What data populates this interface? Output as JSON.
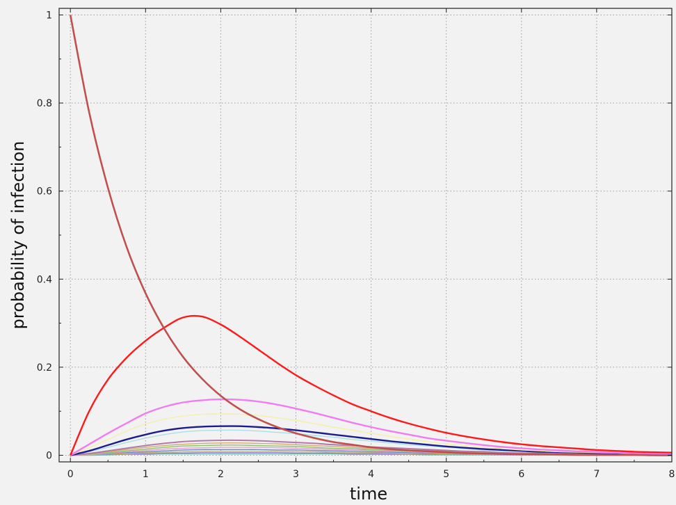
{
  "chart_data": {
    "type": "line",
    "title": "",
    "xlabel": "time",
    "ylabel": "probability of infection",
    "xlim": [
      -0.15,
      8.0
    ],
    "ylim": [
      -0.015,
      1.015
    ],
    "xticks": [
      "0",
      "1",
      "2",
      "3",
      "4",
      "5",
      "6",
      "7",
      "8"
    ],
    "yticks": [
      "0",
      "0.2",
      "0.4",
      "0.6",
      "0.8",
      "1"
    ],
    "grid": "dotted",
    "legend": "none",
    "x": [
      0,
      0.25,
      0.5,
      0.75,
      1,
      1.25,
      1.5,
      1.75,
      2,
      2.25,
      2.5,
      2.75,
      3,
      3.25,
      3.5,
      3.75,
      4,
      4.25,
      4.5,
      4.75,
      5,
      5.25,
      5.5,
      5.75,
      6,
      6.25,
      6.5,
      6.75,
      7,
      7.25,
      7.5,
      7.75,
      8
    ],
    "series": [
      {
        "color": "#c0504d",
        "width": 2.6,
        "values": [
          1.0,
          0.779,
          0.607,
          0.472,
          0.368,
          0.287,
          0.223,
          0.174,
          0.135,
          0.105,
          0.082,
          0.064,
          0.05,
          0.039,
          0.03,
          0.024,
          0.018,
          0.014,
          0.011,
          0.009,
          0.007,
          0.005,
          0.004,
          0.003,
          0.002,
          0.002,
          0.002,
          0.001,
          0.001,
          0.001,
          0.001,
          0.0,
          0.0
        ]
      },
      {
        "color": "#ff1a1a",
        "width": 2.4,
        "values": [
          0.0,
          0.1,
          0.172,
          0.222,
          0.26,
          0.29,
          0.313,
          0.315,
          0.297,
          0.27,
          0.24,
          0.21,
          0.182,
          0.158,
          0.136,
          0.116,
          0.1,
          0.085,
          0.072,
          0.061,
          0.051,
          0.043,
          0.036,
          0.03,
          0.025,
          0.021,
          0.018,
          0.015,
          0.012,
          0.01,
          0.008,
          0.007,
          0.006
        ]
      },
      {
        "color": "#f07cf0",
        "width": 2.4,
        "values": [
          0.0,
          0.025,
          0.05,
          0.073,
          0.095,
          0.11,
          0.12,
          0.125,
          0.127,
          0.126,
          0.122,
          0.115,
          0.106,
          0.096,
          0.085,
          0.074,
          0.064,
          0.055,
          0.047,
          0.039,
          0.033,
          0.028,
          0.023,
          0.019,
          0.016,
          0.013,
          0.011,
          0.009,
          0.008,
          0.006,
          0.005,
          0.004,
          0.004
        ]
      },
      {
        "color": "#f5f0a8",
        "width": 1.4,
        "values": [
          0.0,
          0.017,
          0.036,
          0.055,
          0.071,
          0.082,
          0.089,
          0.093,
          0.094,
          0.093,
          0.09,
          0.085,
          0.079,
          0.072,
          0.064,
          0.057,
          0.05,
          0.043,
          0.037,
          0.031,
          0.026,
          0.022,
          0.018,
          0.015,
          0.012,
          0.01,
          0.008,
          0.007,
          0.006,
          0.005,
          0.004,
          0.003,
          0.003
        ]
      },
      {
        "color": "#1c1c8c",
        "width": 2.4,
        "values": [
          0.0,
          0.01,
          0.023,
          0.036,
          0.047,
          0.056,
          0.062,
          0.065,
          0.066,
          0.066,
          0.064,
          0.061,
          0.057,
          0.052,
          0.047,
          0.042,
          0.037,
          0.032,
          0.028,
          0.024,
          0.02,
          0.017,
          0.014,
          0.012,
          0.01,
          0.008,
          0.007,
          0.006,
          0.005,
          0.004,
          0.003,
          0.003,
          0.002
        ]
      },
      {
        "color": "#a8e0e8",
        "width": 1.4,
        "values": [
          0.0,
          0.008,
          0.018,
          0.029,
          0.039,
          0.047,
          0.053,
          0.056,
          0.057,
          0.057,
          0.055,
          0.052,
          0.049,
          0.045,
          0.041,
          0.036,
          0.032,
          0.028,
          0.024,
          0.021,
          0.018,
          0.015,
          0.012,
          0.01,
          0.009,
          0.007,
          0.006,
          0.005,
          0.004,
          0.003,
          0.003,
          0.002,
          0.002
        ]
      },
      {
        "color": "#b07aa8",
        "width": 2.0,
        "values": [
          0.0,
          0.004,
          0.01,
          0.016,
          0.022,
          0.027,
          0.031,
          0.033,
          0.034,
          0.034,
          0.033,
          0.031,
          0.029,
          0.027,
          0.024,
          0.022,
          0.019,
          0.017,
          0.015,
          0.013,
          0.011,
          0.009,
          0.008,
          0.006,
          0.005,
          0.005,
          0.004,
          0.003,
          0.003,
          0.002,
          0.002,
          0.001,
          0.001
        ]
      },
      {
        "color": "#d4a870",
        "width": 1.4,
        "values": [
          0.0,
          0.003,
          0.008,
          0.013,
          0.018,
          0.022,
          0.025,
          0.027,
          0.028,
          0.028,
          0.027,
          0.026,
          0.024,
          0.022,
          0.02,
          0.018,
          0.016,
          0.014,
          0.012,
          0.011,
          0.009,
          0.008,
          0.006,
          0.005,
          0.005,
          0.004,
          0.003,
          0.003,
          0.002,
          0.002,
          0.001,
          0.001,
          0.001
        ]
      },
      {
        "color": "#8ac46a",
        "width": 1.4,
        "values": [
          0.0,
          0.003,
          0.006,
          0.01,
          0.014,
          0.018,
          0.021,
          0.022,
          0.023,
          0.023,
          0.022,
          0.021,
          0.02,
          0.018,
          0.016,
          0.015,
          0.013,
          0.011,
          0.01,
          0.009,
          0.007,
          0.006,
          0.005,
          0.004,
          0.004,
          0.003,
          0.003,
          0.002,
          0.002,
          0.002,
          0.001,
          0.001,
          0.001
        ]
      },
      {
        "color": "#e8a0c8",
        "width": 1.4,
        "values": [
          0.0,
          0.002,
          0.005,
          0.008,
          0.011,
          0.014,
          0.016,
          0.017,
          0.018,
          0.018,
          0.018,
          0.017,
          0.016,
          0.015,
          0.013,
          0.012,
          0.011,
          0.009,
          0.008,
          0.007,
          0.006,
          0.005,
          0.004,
          0.004,
          0.003,
          0.003,
          0.002,
          0.002,
          0.002,
          0.001,
          0.001,
          0.001,
          0.001
        ]
      },
      {
        "color": "#6a8cc8",
        "width": 1.4,
        "values": [
          0.0,
          0.002,
          0.004,
          0.006,
          0.008,
          0.01,
          0.012,
          0.013,
          0.013,
          0.013,
          0.013,
          0.012,
          0.012,
          0.011,
          0.01,
          0.009,
          0.008,
          0.007,
          0.006,
          0.005,
          0.005,
          0.004,
          0.003,
          0.003,
          0.002,
          0.002,
          0.002,
          0.001,
          0.001,
          0.001,
          0.001,
          0.001,
          0.0
        ]
      },
      {
        "color": "#c8b878",
        "width": 1.4,
        "values": [
          0.0,
          0.001,
          0.003,
          0.004,
          0.006,
          0.007,
          0.008,
          0.009,
          0.009,
          0.009,
          0.009,
          0.009,
          0.008,
          0.008,
          0.007,
          0.006,
          0.006,
          0.005,
          0.004,
          0.004,
          0.003,
          0.003,
          0.002,
          0.002,
          0.002,
          0.001,
          0.001,
          0.001,
          0.001,
          0.001,
          0.001,
          0.0,
          0.0
        ]
      },
      {
        "color": "#a080d0",
        "width": 1.4,
        "values": [
          0.0,
          0.001,
          0.002,
          0.003,
          0.004,
          0.005,
          0.005,
          0.006,
          0.006,
          0.006,
          0.006,
          0.006,
          0.005,
          0.005,
          0.005,
          0.004,
          0.004,
          0.003,
          0.003,
          0.002,
          0.002,
          0.002,
          0.002,
          0.001,
          0.001,
          0.001,
          0.001,
          0.001,
          0.001,
          0.0,
          0.0,
          0.0,
          0.0
        ]
      },
      {
        "color": "#70b8b0",
        "width": 1.4,
        "values": [
          0.0,
          0.0,
          0.001,
          0.002,
          0.002,
          0.003,
          0.003,
          0.003,
          0.003,
          0.003,
          0.003,
          0.003,
          0.003,
          0.003,
          0.003,
          0.002,
          0.002,
          0.002,
          0.002,
          0.001,
          0.001,
          0.001,
          0.001,
          0.001,
          0.001,
          0.001,
          0.0,
          0.0,
          0.0,
          0.0,
          0.0,
          0.0,
          0.0
        ]
      }
    ]
  }
}
